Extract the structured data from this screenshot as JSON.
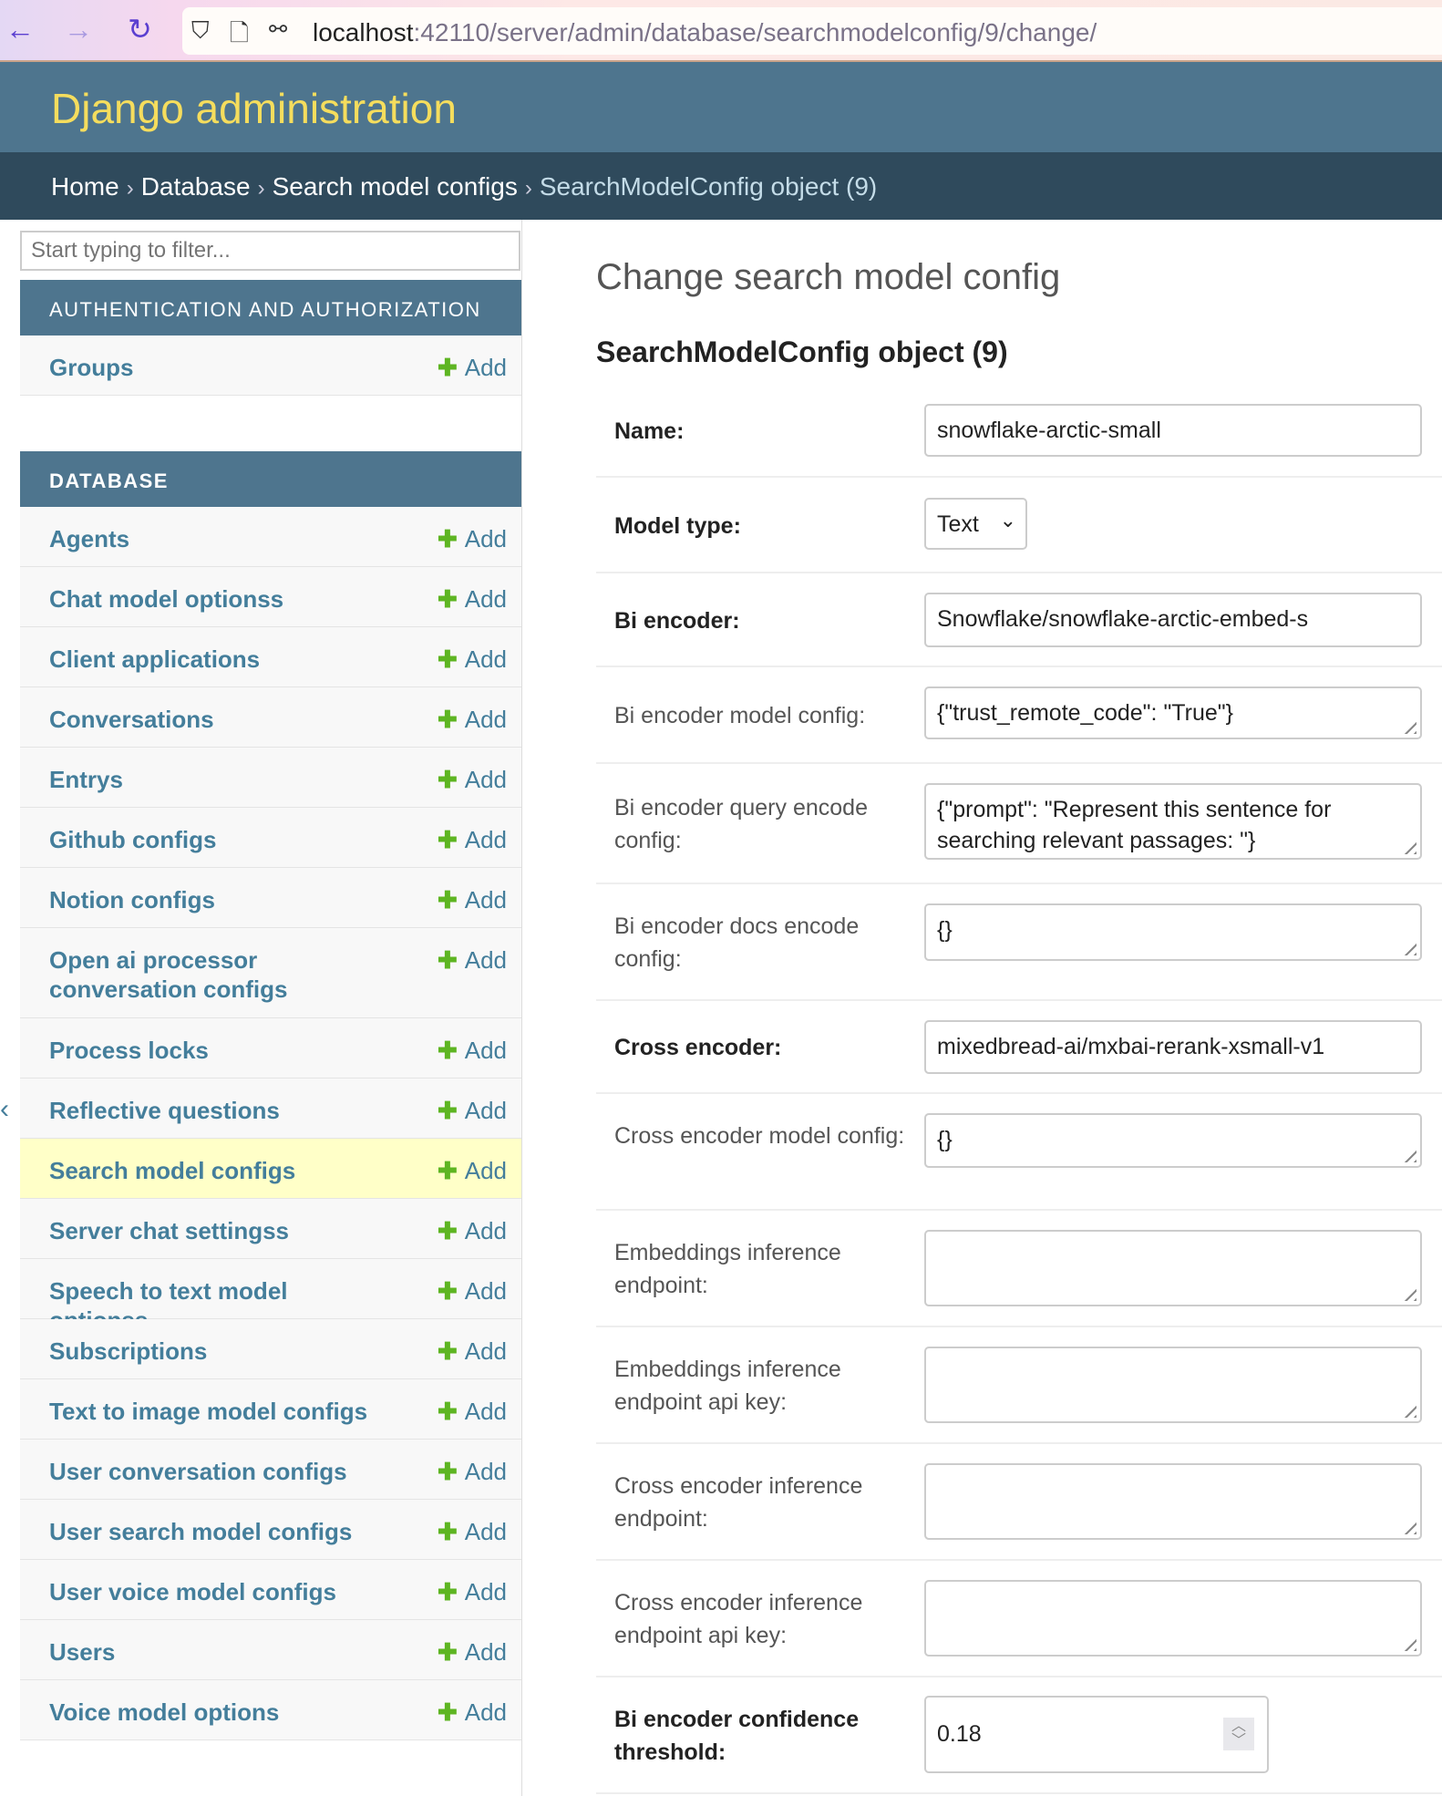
{
  "browser": {
    "url_host": "localhost",
    "url_rest": ":42110/server/admin/database/searchmodelconfig/9/change/"
  },
  "header": {
    "site_title": "Django administration"
  },
  "breadcrumbs": [
    {
      "label": "Home"
    },
    {
      "label": "Database"
    },
    {
      "label": "Search model configs"
    },
    {
      "label": "SearchModelConfig object (9)"
    }
  ],
  "sidebar": {
    "filter_placeholder": "Start typing to filter...",
    "add_label": "Add",
    "sections": [
      {
        "caption": "AUTHENTICATION AND AUTHORIZATION",
        "items": [
          {
            "label": "Groups"
          }
        ]
      },
      {
        "caption": "DATABASE",
        "items": [
          {
            "label": "Agents"
          },
          {
            "label": "Chat model optionss"
          },
          {
            "label": "Client applications"
          },
          {
            "label": "Conversations"
          },
          {
            "label": "Entrys"
          },
          {
            "label": "Github configs"
          },
          {
            "label": "Notion configs"
          },
          {
            "label": "Open ai processor conversation configs"
          },
          {
            "label": "Process locks"
          },
          {
            "label": "Reflective questions"
          },
          {
            "label": "Search model configs",
            "current": true
          },
          {
            "label": "Server chat settingss"
          },
          {
            "label": "Speech to text model optionss"
          },
          {
            "label": "Subscriptions"
          },
          {
            "label": "Text to image model configs"
          },
          {
            "label": "User conversation configs"
          },
          {
            "label": "User search model configs"
          },
          {
            "label": "User voice model configs"
          },
          {
            "label": "Users"
          },
          {
            "label": "Voice model options"
          }
        ]
      }
    ]
  },
  "main": {
    "title": "Change search model config",
    "object_title": "SearchModelConfig object (9)",
    "fields": [
      {
        "label": "Name:",
        "required": true,
        "type": "text",
        "value": "snowflake-arctic-small"
      },
      {
        "label": "Model type:",
        "required": true,
        "type": "select",
        "value": "Text"
      },
      {
        "label": "Bi encoder:",
        "required": true,
        "type": "text",
        "value": "Snowflake/snowflake-arctic-embed-s"
      },
      {
        "label": "Bi encoder model config:",
        "required": false,
        "type": "textarea",
        "value": "{\"trust_remote_code\": \"True\"}"
      },
      {
        "label": "Bi encoder query encode config:",
        "required": false,
        "type": "textarea",
        "value": "{\"prompt\": \"Represent this sentence for searching relevant passages: \"}"
      },
      {
        "label": "Bi encoder docs encode config:",
        "required": false,
        "type": "textarea",
        "value": "{}"
      },
      {
        "label": "Cross encoder:",
        "required": true,
        "type": "text",
        "value": "mixedbread-ai/mxbai-rerank-xsmall-v1"
      },
      {
        "label": "Cross encoder model config:",
        "required": false,
        "type": "textarea",
        "value": "{}"
      },
      {
        "label": "Embeddings inference endpoint:",
        "required": false,
        "type": "textarea",
        "value": ""
      },
      {
        "label": "Embeddings inference endpoint api key:",
        "required": false,
        "type": "textarea",
        "value": ""
      },
      {
        "label": "Cross encoder inference endpoint:",
        "required": false,
        "type": "textarea",
        "value": ""
      },
      {
        "label": "Cross encoder inference endpoint api key:",
        "required": false,
        "type": "textarea",
        "value": ""
      },
      {
        "label": "Bi encoder confidence threshold:",
        "required": true,
        "type": "number",
        "value": "0.18"
      }
    ]
  }
}
